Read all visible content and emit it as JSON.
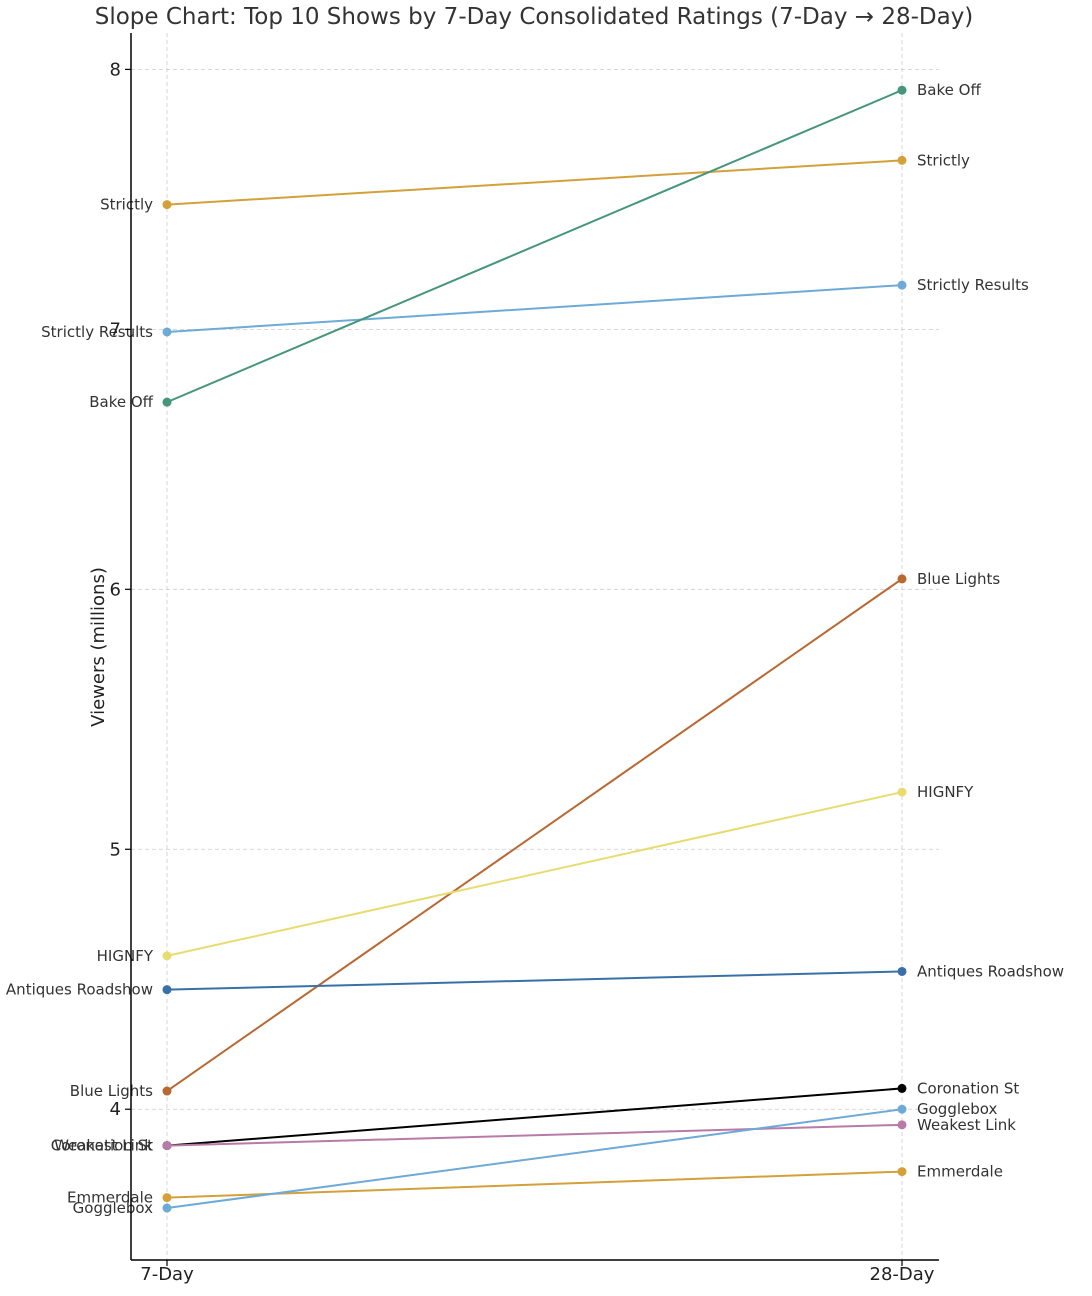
{
  "chart_data": {
    "type": "line",
    "title": "Slope Chart: Top 10 Shows by 7-Day Consolidated Ratings (7-Day → 28-Day)",
    "ylabel": "Viewers (millions)",
    "xlabel": "",
    "categories": [
      "7-Day",
      "28-Day"
    ],
    "ylim": [
      3.42,
      8.14
    ],
    "yticks": [
      "4",
      "5",
      "6",
      "7",
      "8"
    ],
    "grid": true,
    "series": [
      {
        "name": "Strictly",
        "values": [
          7.48,
          7.65
        ],
        "color": "#d4a03a"
      },
      {
        "name": "Strictly Results",
        "values": [
          6.99,
          7.17
        ],
        "color": "#6eaad6"
      },
      {
        "name": "Bake Off",
        "values": [
          6.72,
          7.92
        ],
        "color": "#45967a"
      },
      {
        "name": "Blue Lights",
        "values": [
          4.07,
          6.04
        ],
        "color": "#b86830"
      },
      {
        "name": "HIGNFY",
        "values": [
          4.59,
          5.22
        ],
        "color": "#e8dc70"
      },
      {
        "name": "Antiques Roadshow",
        "values": [
          4.46,
          4.53
        ],
        "color": "#3a70a8"
      },
      {
        "name": "Coronation St",
        "values": [
          3.86,
          4.08
        ],
        "color": "#000000"
      },
      {
        "name": "Weakest Link",
        "values": [
          3.86,
          3.94
        ],
        "color": "#b87aa6"
      },
      {
        "name": "Emmerdale",
        "values": [
          3.66,
          3.76
        ],
        "color": "#d4a03a"
      },
      {
        "name": "Gogglebox",
        "values": [
          3.62,
          4.0
        ],
        "color": "#6eaad6"
      }
    ]
  }
}
